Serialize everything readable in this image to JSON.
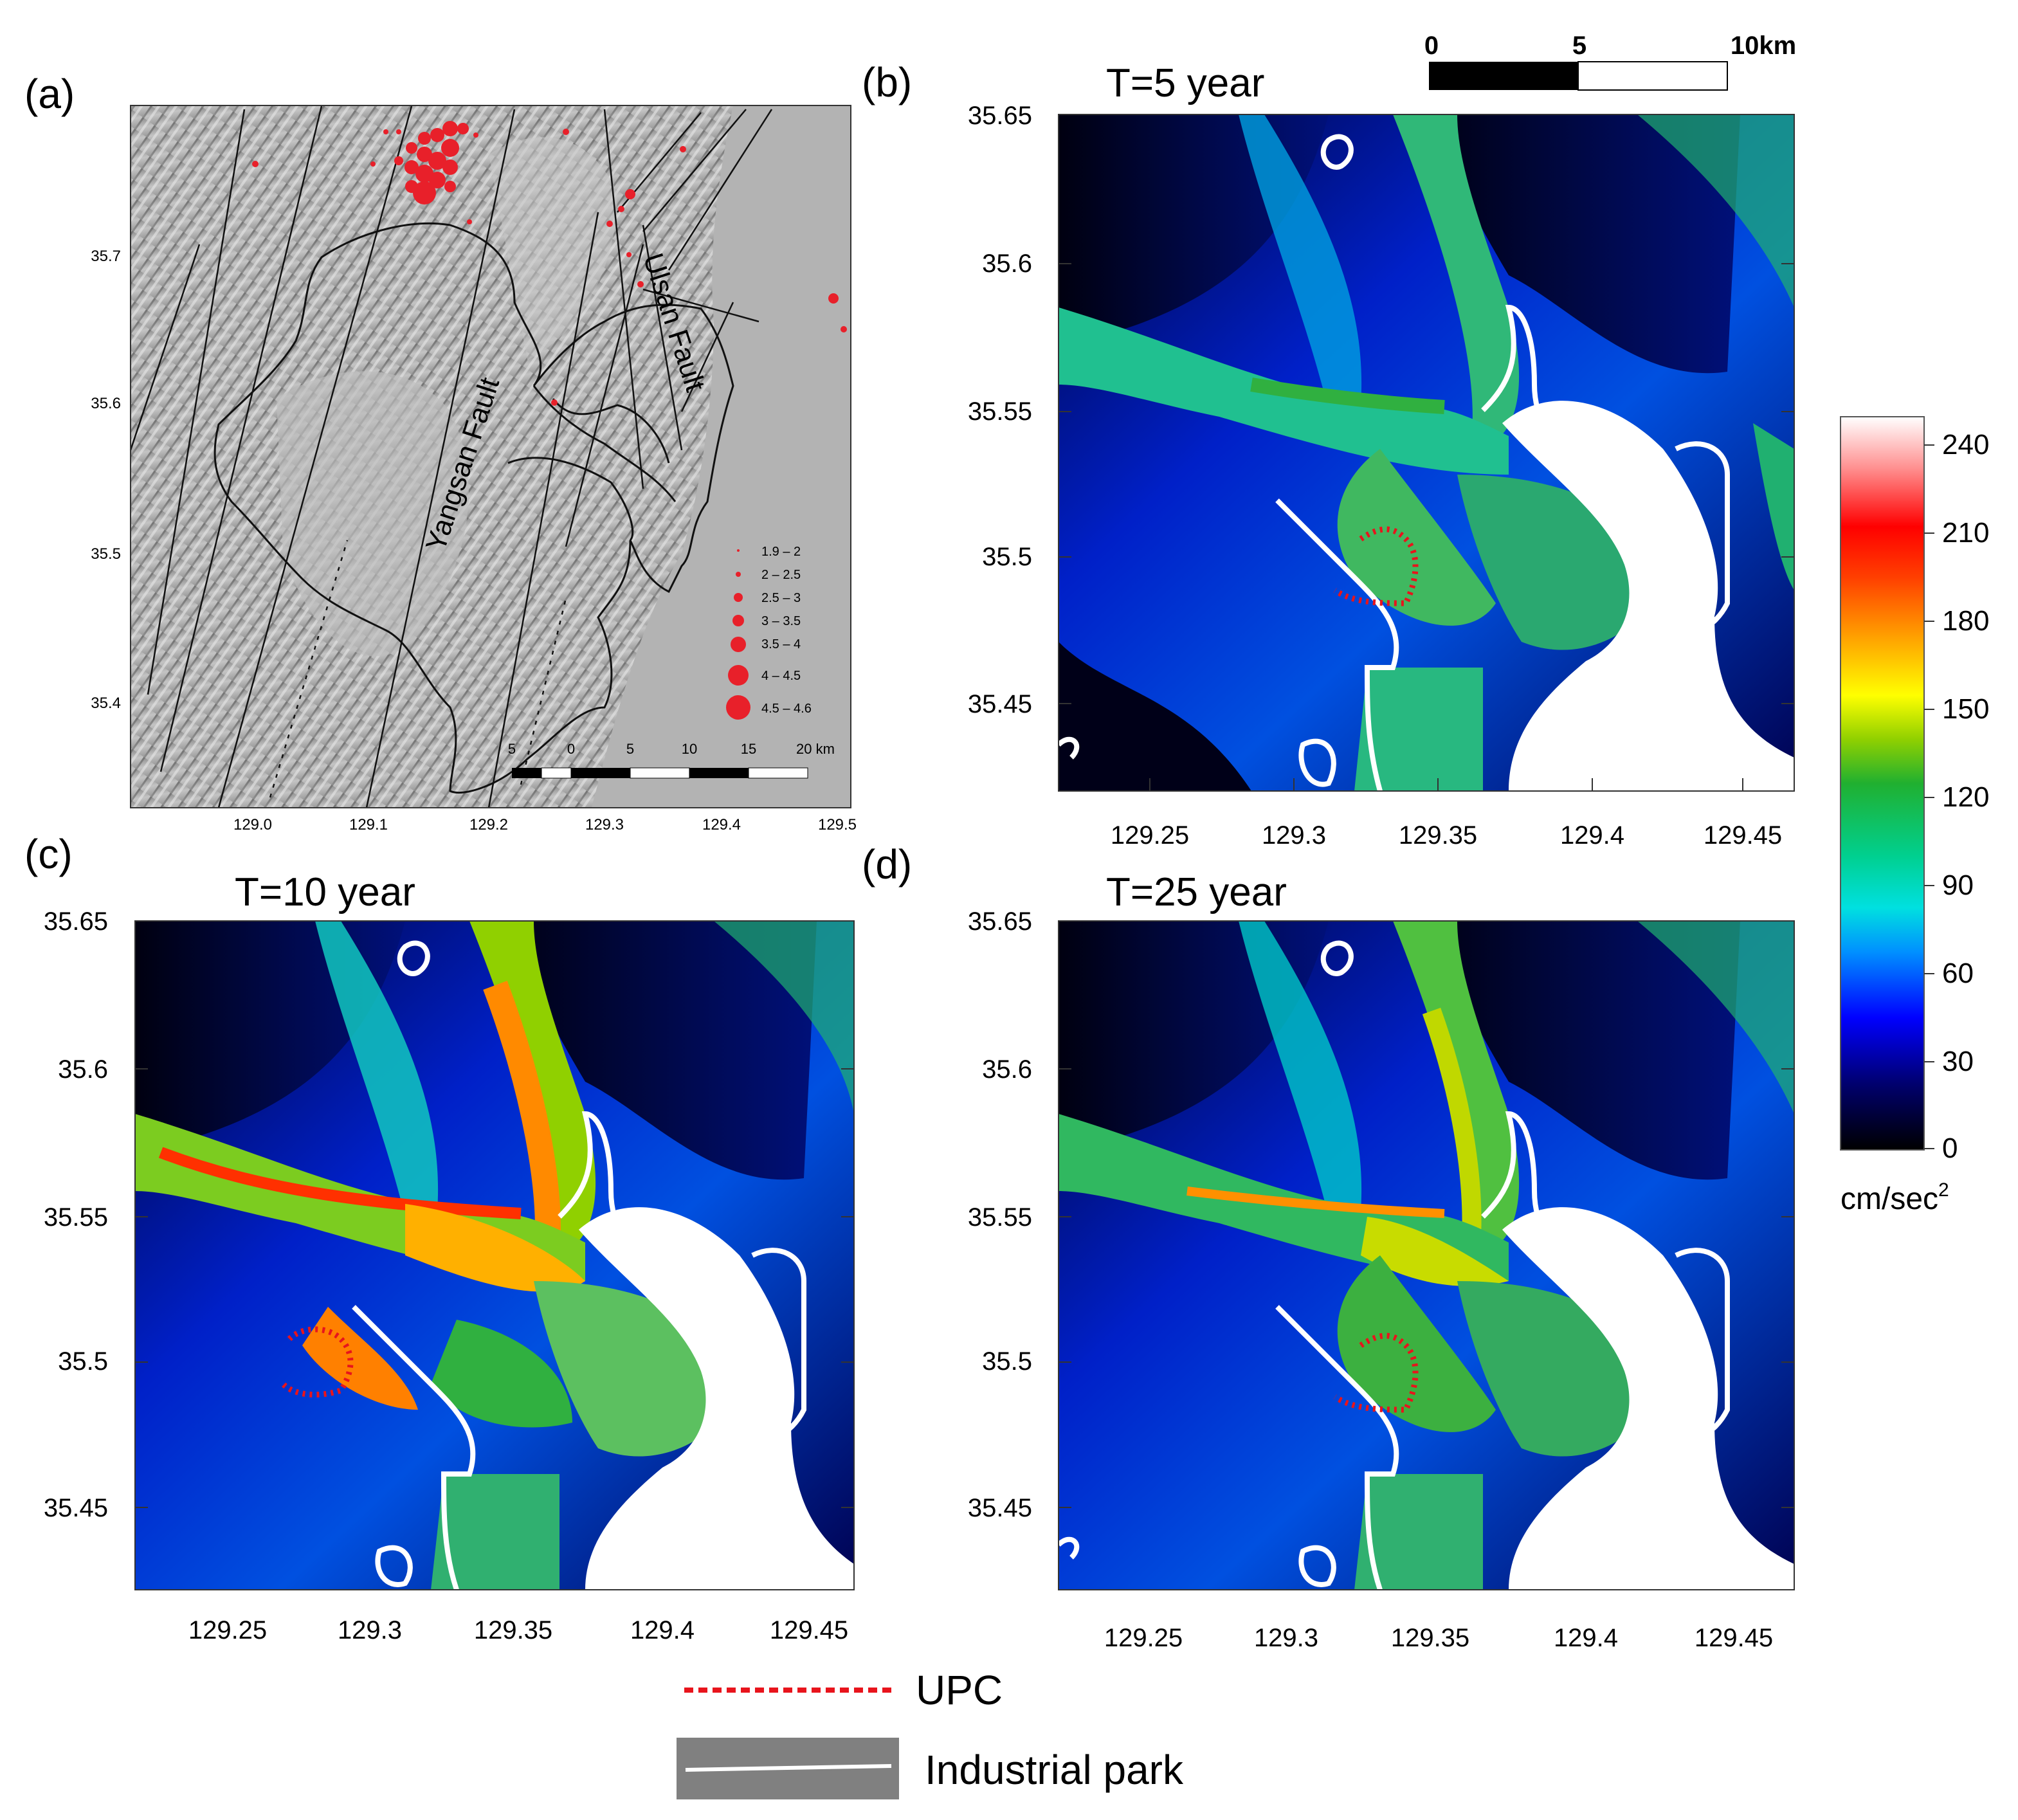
{
  "panels": {
    "a": {
      "letter": "(a)",
      "y_ticks": [
        "35.7",
        "35.6",
        "35.5",
        "35.4"
      ],
      "x_ticks": [
        "129.0",
        "129.1",
        "129.2",
        "129.3",
        "129.4",
        "129.5"
      ],
      "fault_labels": [
        "Yangsan Fault",
        "Ulsan Fault"
      ],
      "magnitude_legend": [
        "1.9 – 2",
        "2 – 2.5",
        "2.5 – 3",
        "3 – 3.5",
        "3.5 – 4",
        "4 – 4.5",
        "4.5 – 4.6"
      ],
      "scalebar_labels": [
        "5",
        "0",
        "5",
        "10",
        "15",
        "20 km"
      ]
    },
    "b": {
      "letter": "(b)",
      "title": "T=5 year"
    },
    "c": {
      "letter": "(c)",
      "title": "T=10 year"
    },
    "d": {
      "letter": "(d)",
      "title": "T=25 year"
    }
  },
  "map_axes": {
    "y_ticks": [
      "35.65",
      "35.6",
      "35.55",
      "35.5",
      "35.45"
    ],
    "x_ticks": [
      "129.25",
      "129.3",
      "129.35",
      "129.4",
      "129.45"
    ]
  },
  "top_scalebar": {
    "labels": [
      "0",
      "5",
      "10km"
    ]
  },
  "colorbar": {
    "ticks": [
      "240",
      "210",
      "180",
      "150",
      "120",
      "90",
      "60",
      "30",
      "0"
    ],
    "unit": "cm/sec",
    "unit_superscript": "2",
    "colors": [
      "#000000",
      "#00008b",
      "#0000ff",
      "#00bfff",
      "#00e5d0",
      "#00c060",
      "#30b020",
      "#ffff00",
      "#ff8c00",
      "#ff0000",
      "#ff7070",
      "#ffffff"
    ]
  },
  "legend": {
    "upc_label": "UPC",
    "industrial_label": "Industrial park",
    "upc_color": "#e8141c",
    "industrial_bg": "#808080"
  }
}
